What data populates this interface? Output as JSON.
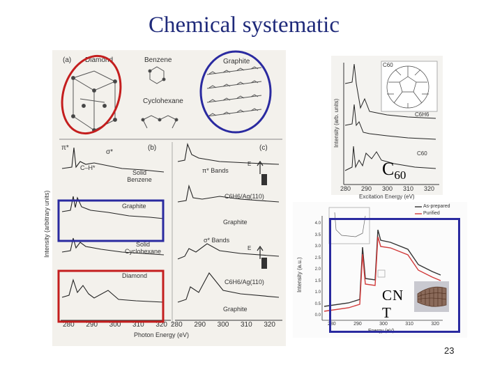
{
  "slide": {
    "title": "Chemical systematic",
    "page_number": "23"
  },
  "figure_left": {
    "panel_a_label": "(a)",
    "panel_b_label": "(b)",
    "panel_c_label": "(c)",
    "structures": [
      "Diamond",
      "Benzene",
      "Graphite",
      "Cyclohexane"
    ],
    "panel_b_curves": [
      "C–H*",
      "Solid Benzene",
      "Graphite",
      "Solid Cyclohexane",
      "Diamond"
    ],
    "panel_b_top_labels": [
      "π*",
      "σ*"
    ],
    "panel_c_labels": [
      "π* Bands",
      "C6H6/Ag(110)",
      "Graphite",
      "σ* Bands",
      "C6H6/Ag(110)",
      "Graphite"
    ],
    "e_symbol": "E",
    "y_axis": "Intensity (arbitrary units)",
    "x_axis": "Photon Energy (eV)",
    "x_ticks_b": [
      "280",
      "290",
      "300",
      "310",
      "320"
    ],
    "x_ticks_c": [
      "280",
      "290",
      "300",
      "310",
      "320"
    ]
  },
  "figure_top_right": {
    "y_axis": "Intensity (arb. units)",
    "x_axis": "Excitation Energy (eV)",
    "x_ticks": [
      "280",
      "290",
      "300",
      "310",
      "320"
    ],
    "curve_labels": [
      "C60",
      "C6H6",
      "C60"
    ],
    "overlay_label": "C",
    "overlay_subscript": "60"
  },
  "figure_bottom_right": {
    "legend": [
      "As-prepared",
      "Purified"
    ],
    "y_axis": "Intensity (a.u.)",
    "x_axis": "Energy (eV)",
    "y_ticks": [
      "4.0",
      "3.5",
      "3.0",
      "2.5",
      "2.0",
      "1.5",
      "1.0",
      "0.5",
      "0.0"
    ],
    "x_ticks": [
      "280",
      "290",
      "300",
      "310",
      "320"
    ],
    "overlay_label_line1": "CN",
    "overlay_label_line2": "T"
  },
  "colors": {
    "title": "#1f2a7a",
    "red_outline": "#c41e1e",
    "blue_outline": "#2a2aa0",
    "as_prepared_curve": "#333333",
    "purified_curve": "#d23a3a"
  }
}
